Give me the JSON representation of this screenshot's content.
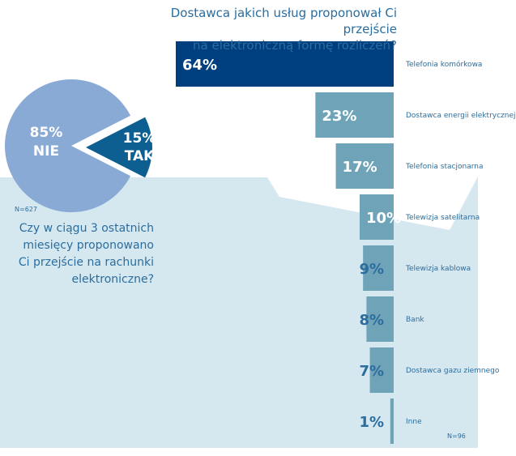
{
  "chart_data": [
    {
      "type": "pie",
      "question": "Czy w ciągu 3 ostatnich miesięcy proponowano Ci przejście na rachunki elektroniczne?",
      "question_lines": [
        "Czy w ciągu 3 ostatnich",
        "miesięcy proponowano",
        "Ci przejście na rachunki",
        "elektroniczne?"
      ],
      "sample": "N=627",
      "slices": [
        {
          "label": "NIE",
          "value": 85,
          "value_label": "85%",
          "color": "#8aaad6"
        },
        {
          "label": "TAK",
          "value": 15,
          "value_label": "15%",
          "color": "#0d5f91"
        }
      ]
    },
    {
      "type": "bar",
      "orientation": "horizontal",
      "title": "Dostawca jakich usług proponował Ci przejście na elektroniczną formę rozliczeń?",
      "title_lines": [
        "Dostawca jakich usług proponował Ci przejście",
        "na elektroniczną formę rozliczeń?"
      ],
      "sample": "N=96",
      "xlim": [
        0,
        64
      ],
      "categories": [
        "Telefonia komórkowa",
        "Dostawca energii elektrycznej",
        "Telefonia stacjonarna",
        "Telewizja satelitarna",
        "Telewizja kablowa",
        "Bank",
        "Dostawca gazu ziemnego",
        "Inne"
      ],
      "values": [
        64,
        23,
        17,
        10,
        9,
        8,
        7,
        1
      ],
      "value_labels": [
        "64%",
        "23%",
        "17%",
        "10%",
        "9%",
        "8%",
        "7%",
        "1%"
      ],
      "colors": {
        "highlight": "#003f7f",
        "bar": "#6fa3b8",
        "label": "#2b6d9e",
        "band": "#d5e8f0"
      }
    }
  ]
}
